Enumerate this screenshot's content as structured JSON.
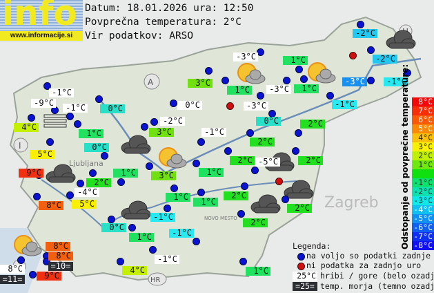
{
  "logo": {
    "text": "info",
    "url": "www.informacije.si"
  },
  "header": {
    "date_line": "Datum: 18.01.2026 ura: 12:50",
    "avg_line": "Povprečna temperatura: 2°C",
    "source_line": "Vir podatkov: ARSO"
  },
  "colors": {
    "white": "#ffffff",
    "sea": "#2b2f34",
    "station": "#0a14d0",
    "nodata": "#d01010"
  },
  "labels": [
    {
      "text": "-1°C",
      "bg": "#ffffff"
    },
    {
      "text": "-9°C",
      "bg": "#ffffff"
    },
    {
      "text": "-1°C",
      "bg": "#ffffff"
    },
    {
      "text": "0°C",
      "bg": "#28e0c8"
    },
    {
      "text": "4°C",
      "bg": "#c4f000"
    },
    {
      "text": "1°C",
      "bg": "#22e060"
    },
    {
      "text": "0°C",
      "bg": "#28e0c8"
    },
    {
      "text": "5°C",
      "bg": "#f8f000"
    },
    {
      "text": "3°C",
      "bg": "#70e010"
    },
    {
      "text": "0°C",
      "bg": "#ffffff"
    },
    {
      "text": "-2°C",
      "bg": "#ffffff"
    },
    {
      "text": "3°C",
      "bg": "#70e010"
    },
    {
      "text": "-1°C",
      "bg": "#ffffff"
    },
    {
      "text": "-3°C",
      "bg": "#ffffff"
    },
    {
      "text": "1°C",
      "bg": "#22e060"
    },
    {
      "text": "1°C",
      "bg": "#22e060"
    },
    {
      "text": "-3°C",
      "bg": "#ffffff"
    },
    {
      "text": "1°C",
      "bg": "#22e060"
    },
    {
      "text": "-3°C",
      "bg": "#ffffff"
    },
    {
      "text": "0°C",
      "bg": "#28e0c8"
    },
    {
      "text": "-2°C",
      "bg": "#22c8f0"
    },
    {
      "text": "-2°C",
      "bg": "#22c8f0"
    },
    {
      "text": "-3°C",
      "bg": "#1890f0"
    },
    {
      "text": "-1°C",
      "bg": "#28e8f0"
    },
    {
      "text": "-1°C",
      "bg": "#28e8f0"
    },
    {
      "text": "2°C",
      "bg": "#22e020"
    },
    {
      "text": "2°C",
      "bg": "#22e020"
    },
    {
      "text": "2°C",
      "bg": "#22e020"
    },
    {
      "text": "-5°C",
      "bg": "#ffffff"
    },
    {
      "text": "2°C",
      "bg": "#22e020"
    },
    {
      "text": "9°C",
      "bg": "#f03010"
    },
    {
      "text": "2°C",
      "bg": "#22e020"
    },
    {
      "text": "1°C",
      "bg": "#22e060"
    },
    {
      "text": "3°C",
      "bg": "#70e010"
    },
    {
      "text": "1°C",
      "bg": "#22e060"
    },
    {
      "text": "-4°C",
      "bg": "#ffffff"
    },
    {
      "text": "8°C",
      "bg": "#f06010"
    },
    {
      "text": "5°C",
      "bg": "#f8f000"
    },
    {
      "text": "1°C",
      "bg": "#22e060"
    },
    {
      "text": "1°C",
      "bg": "#22e060"
    },
    {
      "text": "2°C",
      "bg": "#22e020"
    },
    {
      "text": "2°C",
      "bg": "#22e020"
    },
    {
      "text": "2°C",
      "bg": "#22e020"
    },
    {
      "text": "-1°C",
      "bg": "#28e8f0"
    },
    {
      "text": "0°C",
      "bg": "#28e0c8"
    },
    {
      "text": "-1°C",
      "bg": "#28e8f0"
    },
    {
      "text": "1°C",
      "bg": "#22e060"
    },
    {
      "text": "8°C",
      "bg": "#f06010"
    },
    {
      "text": "8°C",
      "bg": "#f06010"
    },
    {
      "text": "=10=",
      "bg": "#2b2f34"
    },
    {
      "text": "8°C",
      "bg": "#ffffff"
    },
    {
      "text": "9°C",
      "bg": "#f03010"
    },
    {
      "text": "=11=",
      "bg": "#2b2f34"
    },
    {
      "text": "4°C",
      "bg": "#c4f000"
    },
    {
      "text": "-1°C",
      "bg": "#ffffff"
    },
    {
      "text": "1°C",
      "bg": "#22e060"
    }
  ],
  "map_markers": {
    "austria": "A",
    "hungary": "H",
    "italy": "I",
    "croatia": "HR",
    "zagreb": "Zagreb",
    "ljubljana": "Ljubljana",
    "novo_mesto": "NOVO MESTO"
  },
  "scale": {
    "title": "Odstopanje od povprečne temperature:",
    "steps": [
      {
        "label": "8°C",
        "color": "#f00a0a"
      },
      {
        "label": "7°C",
        "color": "#f82e0a"
      },
      {
        "label": "6°C",
        "color": "#f85a08"
      },
      {
        "label": "5°C",
        "color": "#f88a08"
      },
      {
        "label": "4°C",
        "color": "#f8c008"
      },
      {
        "label": "3°C",
        "color": "#f8f008"
      },
      {
        "label": "2°C",
        "color": "#c0f008"
      },
      {
        "label": "1°C",
        "color": "#70e810"
      },
      {
        "label": "",
        "color": "#10e010"
      },
      {
        "label": "-1°C",
        "color": "#10e070"
      },
      {
        "label": "-2°C",
        "color": "#10e0b0"
      },
      {
        "label": "-3°C",
        "color": "#10e8e8"
      },
      {
        "label": "-4°C",
        "color": "#10c0f0"
      },
      {
        "label": "-5°C",
        "color": "#1090f0"
      },
      {
        "label": "-6°C",
        "color": "#1060f0"
      },
      {
        "label": "-7°C",
        "color": "#1030f0"
      },
      {
        "label": "-8°C",
        "color": "#1010f0"
      }
    ]
  },
  "legend": {
    "title": "Legenda:",
    "station": "na voljo so podatki zadnje ure",
    "no_data": "ni podatka za zadnjo uro",
    "mountain_sample": "25°C",
    "mountain": "hribi / gore (belo ozadje)",
    "sea_sample": "=25=",
    "sea": "temp. morja (temno ozadje)"
  }
}
